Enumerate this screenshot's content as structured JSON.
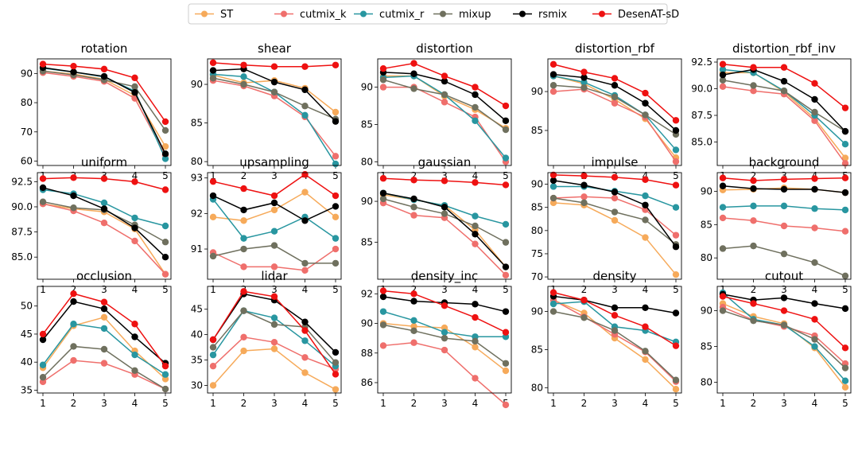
{
  "chart_data": {
    "type": "line",
    "x": [
      1,
      2,
      3,
      4,
      5
    ],
    "legend_position": "top-center",
    "legend": [
      {
        "name": "ST",
        "color": "#f6aa5a"
      },
      {
        "name": "cutmix_k",
        "color": "#ef6f6c"
      },
      {
        "name": "cutmix_r",
        "color": "#2896a0"
      },
      {
        "name": "mixup",
        "color": "#6f705e"
      },
      {
        "name": "rsmix",
        "color": "#000000"
      },
      {
        "name": "DesenAT-sD",
        "color": "#ee1111"
      }
    ],
    "subplots": [
      {
        "title": "rotation",
        "ylim": [
          58.5,
          95
        ],
        "yticks": [
          "60",
          "70",
          "80",
          "90"
        ],
        "series": {
          "ST": [
            90.8,
            89.8,
            88.0,
            82.5,
            65.0
          ],
          "cutmix_k": [
            90.3,
            89.0,
            87.3,
            81.5,
            62.0
          ],
          "cutmix_r": [
            91.8,
            90.5,
            88.8,
            84.0,
            60.8
          ],
          "mixup": [
            90.8,
            89.5,
            87.8,
            85.5,
            70.5
          ],
          "rsmix": [
            92.0,
            90.5,
            89.0,
            83.5,
            62.5
          ],
          "DesenAT-sD": [
            93.2,
            92.5,
            91.5,
            88.5,
            73.5
          ]
        }
      },
      {
        "title": "shear",
        "ylim": [
          79.5,
          93.3
        ],
        "yticks": [
          "80",
          "85",
          "90"
        ],
        "series": {
          "ST": [
            91.2,
            90.2,
            90.5,
            89.5,
            86.4
          ],
          "cutmix_k": [
            90.5,
            89.8,
            88.5,
            85.8,
            80.7
          ],
          "cutmix_r": [
            91.3,
            91.0,
            89.0,
            86.0,
            79.7
          ],
          "mixup": [
            90.8,
            90.0,
            89.0,
            87.2,
            85.5
          ],
          "rsmix": [
            91.8,
            92.0,
            90.3,
            89.3,
            85.2
          ],
          "DesenAT-sD": [
            92.8,
            92.5,
            92.3,
            92.3,
            92.5
          ]
        }
      },
      {
        "title": "distortion",
        "ylim": [
          79.5,
          93.8
        ],
        "yticks": [
          "80",
          "85",
          "90"
        ],
        "series": {
          "ST": [
            91.5,
            91.5,
            88.8,
            87.0,
            84.5
          ],
          "cutmix_k": [
            90.0,
            90.0,
            88.0,
            86.0,
            80.0
          ],
          "cutmix_r": [
            91.3,
            91.5,
            89.0,
            85.5,
            80.5
          ],
          "mixup": [
            91.0,
            89.8,
            89.0,
            87.3,
            84.3
          ],
          "rsmix": [
            92.0,
            91.8,
            90.8,
            89.0,
            85.5
          ],
          "DesenAT-sD": [
            92.5,
            93.2,
            91.5,
            90.0,
            87.5
          ]
        }
      },
      {
        "title": "distortion_rbf",
        "ylim": [
          80.5,
          94.2
        ],
        "yticks": [
          "85",
          "90"
        ],
        "series": {
          "ST": [
            92.0,
            91.0,
            89.0,
            86.5,
            81.5
          ],
          "cutmix_k": [
            90.0,
            90.3,
            88.5,
            86.7,
            81.0
          ],
          "cutmix_r": [
            92.0,
            91.2,
            89.5,
            87.0,
            82.5
          ],
          "mixup": [
            90.8,
            90.5,
            89.3,
            87.0,
            84.5
          ],
          "rsmix": [
            92.2,
            91.8,
            90.8,
            88.5,
            85.0
          ],
          "DesenAT-sD": [
            93.5,
            92.5,
            91.7,
            89.8,
            86.3
          ]
        }
      },
      {
        "title": "distortion_rbf_inv",
        "ylim": [
          82.8,
          92.8
        ],
        "yticks": [
          "85.0",
          "87.5",
          "90.0",
          "92.5"
        ],
        "series": {
          "ST": [
            91.5,
            91.5,
            89.7,
            87.2,
            83.5
          ],
          "cutmix_k": [
            90.2,
            89.8,
            89.5,
            87.0,
            83.0
          ],
          "cutmix_r": [
            91.8,
            91.5,
            89.8,
            87.5,
            84.8
          ],
          "mixup": [
            90.8,
            90.3,
            89.8,
            87.8,
            86.0
          ],
          "rsmix": [
            91.3,
            91.8,
            90.7,
            89.0,
            86.0
          ],
          "DesenAT-sD": [
            92.3,
            92.0,
            92.0,
            90.5,
            88.2
          ]
        }
      },
      {
        "title": "uniform",
        "ylim": [
          82.8,
          93.4
        ],
        "yticks": [
          "85.0",
          "87.5",
          "90.0",
          "92.5"
        ],
        "series": {
          "ST": [
            90.3,
            89.8,
            89.5,
            87.8,
            83.3
          ],
          "cutmix_k": [
            90.3,
            89.6,
            88.4,
            86.6,
            83.3
          ],
          "cutmix_r": [
            91.7,
            91.3,
            90.4,
            88.9,
            88.1
          ],
          "mixup": [
            90.5,
            89.9,
            89.7,
            88.2,
            86.5
          ],
          "rsmix": [
            91.9,
            91.1,
            89.8,
            87.9,
            85.0
          ],
          "DesenAT-sD": [
            92.8,
            92.9,
            92.8,
            92.5,
            91.7
          ]
        }
      },
      {
        "title": "upsampling",
        "ylim": [
          90.15,
          93.15
        ],
        "yticks": [
          "91",
          "92",
          "93"
        ],
        "series": {
          "ST": [
            91.9,
            91.8,
            92.1,
            92.6,
            91.9
          ],
          "cutmix_k": [
            90.9,
            90.5,
            90.5,
            90.4,
            91.0
          ],
          "cutmix_r": [
            92.4,
            91.3,
            91.5,
            91.9,
            91.3
          ],
          "mixup": [
            90.8,
            91.0,
            91.1,
            90.6,
            90.6
          ],
          "rsmix": [
            92.5,
            92.1,
            92.3,
            91.8,
            92.2
          ],
          "DesenAT-sD": [
            92.9,
            92.7,
            92.5,
            93.1,
            92.5
          ]
        }
      },
      {
        "title": "gaussian",
        "ylim": [
          80.5,
          93.5
        ],
        "yticks": [
          "85",
          "90"
        ],
        "series": {
          "ST": [
            90.8,
            90.2,
            89.5,
            86.5,
            82.0
          ],
          "cutmix_k": [
            89.8,
            88.3,
            88.0,
            84.8,
            81.0
          ],
          "cutmix_r": [
            91.0,
            90.2,
            89.5,
            88.2,
            87.2
          ],
          "mixup": [
            90.3,
            89.3,
            88.5,
            87.0,
            85.0
          ],
          "rsmix": [
            91.0,
            90.3,
            89.3,
            86.0,
            82.0
          ],
          "DesenAT-sD": [
            92.8,
            92.6,
            92.5,
            92.3,
            92.0
          ]
        }
      },
      {
        "title": "impulse",
        "ylim": [
          69.5,
          92.5
        ],
        "yticks": [
          "70",
          "75",
          "80",
          "85",
          "90"
        ],
        "series": {
          "ST": [
            86.0,
            85.5,
            82.2,
            78.5,
            70.5
          ],
          "cutmix_k": [
            87.0,
            87.3,
            87.0,
            84.5,
            79.0
          ],
          "cutmix_r": [
            89.5,
            89.5,
            88.5,
            87.5,
            85.0
          ],
          "mixup": [
            87.0,
            86.0,
            84.0,
            82.3,
            77.0
          ],
          "rsmix": [
            90.8,
            89.8,
            88.3,
            85.5,
            76.5
          ],
          "DesenAT-sD": [
            92.0,
            91.8,
            91.5,
            91.0,
            89.8
          ]
        }
      },
      {
        "title": "background",
        "ylim": [
          76.8,
          92.8
        ],
        "yticks": [
          "80",
          "85",
          "90"
        ],
        "series": {
          "ST": [
            90.2,
            90.3,
            90.5,
            90.3,
            89.8
          ],
          "cutmix_k": [
            86.0,
            85.6,
            84.8,
            84.5,
            84.0
          ],
          "cutmix_r": [
            87.6,
            87.8,
            87.8,
            87.4,
            87.2
          ],
          "mixup": [
            81.4,
            81.8,
            80.6,
            79.3,
            77.3
          ],
          "rsmix": [
            90.8,
            90.4,
            90.3,
            90.3,
            89.8
          ],
          "DesenAT-sD": [
            92.0,
            91.6,
            91.8,
            91.9,
            92.0
          ]
        }
      },
      {
        "title": "occlusion",
        "ylim": [
          34.5,
          53.5
        ],
        "yticks": [
          "35",
          "40",
          "45",
          "50"
        ],
        "series": {
          "ST": [
            39.0,
            46.5,
            48.0,
            42.0,
            37.0
          ],
          "cutmix_k": [
            36.5,
            40.3,
            39.8,
            37.8,
            35.2
          ],
          "cutmix_r": [
            39.5,
            46.8,
            46.0,
            41.3,
            37.8
          ],
          "mixup": [
            37.3,
            42.8,
            42.3,
            38.5,
            35.2
          ],
          "rsmix": [
            44.0,
            50.8,
            49.5,
            44.5,
            39.8
          ],
          "DesenAT-sD": [
            45.0,
            52.2,
            50.7,
            46.8,
            39.3
          ]
        }
      },
      {
        "title": "lidar",
        "ylim": [
          28.5,
          49.5
        ],
        "yticks": [
          "30",
          "35",
          "40",
          "45"
        ],
        "series": {
          "ST": [
            30.0,
            36.8,
            37.2,
            32.5,
            29.2
          ],
          "cutmix_k": [
            33.8,
            39.5,
            38.5,
            35.5,
            33.2
          ],
          "cutmix_r": [
            36.0,
            44.7,
            43.3,
            38.8,
            33.8
          ],
          "mixup": [
            37.5,
            44.7,
            42.0,
            41.5,
            34.5
          ],
          "rsmix": [
            39.0,
            48.0,
            46.8,
            42.5,
            36.5
          ],
          "DesenAT-sD": [
            39.0,
            48.5,
            47.5,
            40.8,
            32.2
          ]
        }
      },
      {
        "title": "density_inc",
        "ylim": [
          85.3,
          92.5
        ],
        "yticks": [
          "86",
          "88",
          "90",
          "92"
        ],
        "series": {
          "ST": [
            90.0,
            89.8,
            89.7,
            88.4,
            86.8
          ],
          "cutmix_k": [
            88.5,
            88.7,
            88.2,
            86.3,
            84.5
          ],
          "cutmix_r": [
            90.8,
            90.2,
            89.4,
            89.1,
            89.1
          ],
          "mixup": [
            89.9,
            89.5,
            89.0,
            88.8,
            87.3
          ],
          "rsmix": [
            91.8,
            91.5,
            91.4,
            91.3,
            90.8
          ],
          "DesenAT-sD": [
            92.2,
            92.0,
            91.2,
            90.4,
            89.4
          ]
        }
      },
      {
        "title": "density",
        "ylim": [
          79.3,
          93.3
        ],
        "yticks": [
          "80",
          "85",
          "90"
        ],
        "series": {
          "ST": [
            91.5,
            89.8,
            86.5,
            83.7,
            79.8
          ],
          "cutmix_k": [
            91.5,
            89.3,
            87.0,
            84.7,
            80.8
          ],
          "cutmix_r": [
            91.0,
            91.3,
            88.0,
            87.5,
            86.0
          ],
          "mixup": [
            90.0,
            89.2,
            87.5,
            84.8,
            81.0
          ],
          "rsmix": [
            92.0,
            91.5,
            90.5,
            90.5,
            89.8
          ],
          "DesenAT-sD": [
            92.5,
            91.5,
            89.5,
            88.0,
            85.5
          ]
        }
      },
      {
        "title": "cutout",
        "ylim": [
          78.5,
          93.4
        ],
        "yticks": [
          "80",
          "85",
          "90"
        ],
        "series": {
          "ST": [
            91.0,
            89.2,
            88.2,
            84.8,
            79.3
          ],
          "cutmix_k": [
            90.5,
            88.7,
            87.8,
            86.5,
            82.6
          ],
          "cutmix_r": [
            92.5,
            88.8,
            88.0,
            85.0,
            80.2
          ],
          "mixup": [
            90.0,
            88.6,
            88.0,
            86.0,
            82.0
          ],
          "rsmix": [
            92.3,
            91.5,
            91.8,
            91.0,
            90.3
          ],
          "DesenAT-sD": [
            92.0,
            91.0,
            90.0,
            88.8,
            84.8
          ]
        }
      }
    ]
  }
}
